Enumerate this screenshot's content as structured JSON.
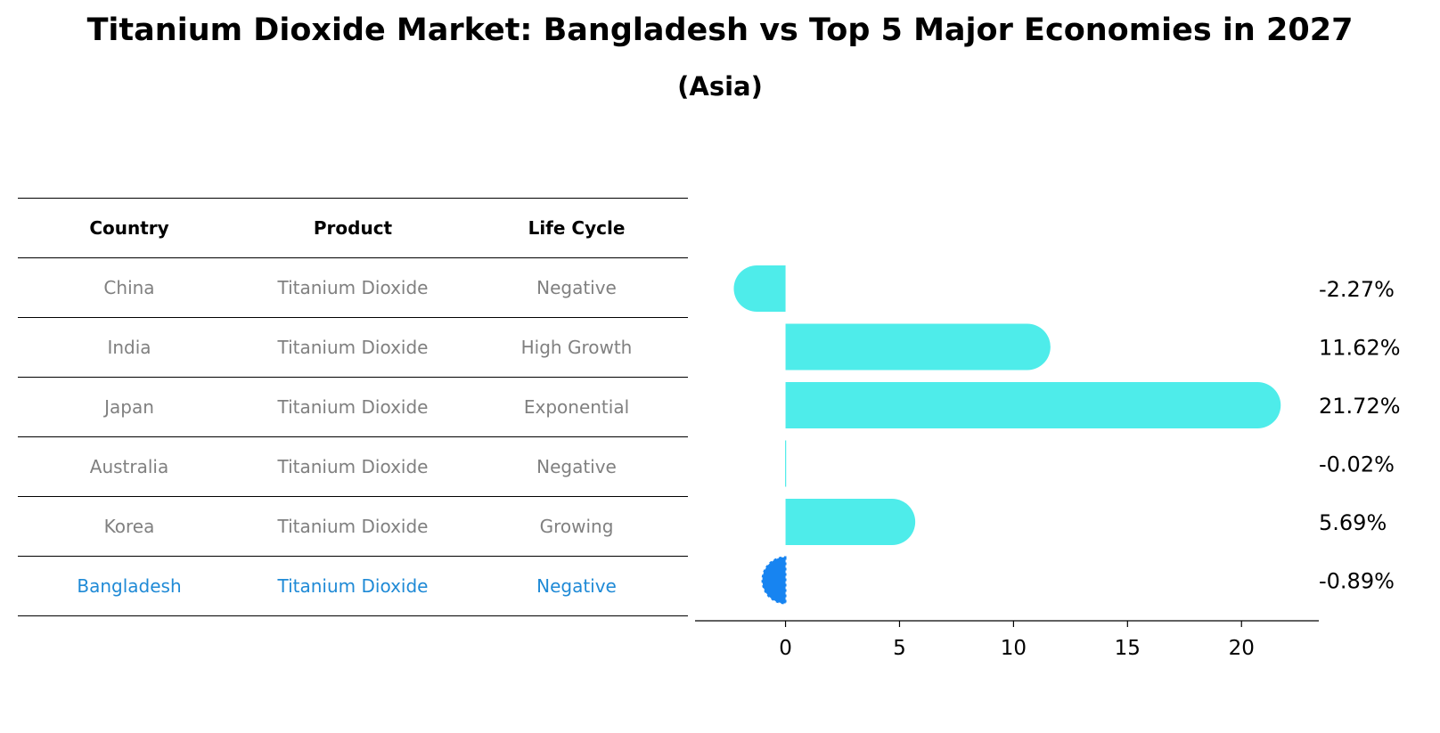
{
  "title": "Titanium Dioxide Market: Bangladesh vs Top 5 Major Economies in 2027",
  "subtitle": "(Asia)",
  "table": {
    "headers": [
      "Country",
      "Product",
      "Life Cycle"
    ],
    "rows": [
      {
        "country": "China",
        "product": "Titanium Dioxide",
        "life_cycle": "Negative"
      },
      {
        "country": "India",
        "product": "Titanium Dioxide",
        "life_cycle": "High Growth"
      },
      {
        "country": "Japan",
        "product": "Titanium Dioxide",
        "life_cycle": "Exponential"
      },
      {
        "country": "Australia",
        "product": "Titanium Dioxide",
        "life_cycle": "Negative"
      },
      {
        "country": "Korea",
        "product": "Titanium Dioxide",
        "life_cycle": "Growing"
      },
      {
        "country": "Bangladesh",
        "product": "Titanium Dioxide",
        "life_cycle": "Negative"
      }
    ]
  },
  "chart_data": {
    "type": "bar",
    "orientation": "horizontal",
    "categories": [
      "China",
      "India",
      "Japan",
      "Australia",
      "Korea",
      "Bangladesh"
    ],
    "values": [
      -2.27,
      11.62,
      21.72,
      -0.02,
      5.69,
      -0.89
    ],
    "value_labels": [
      "-2.27%",
      "11.62%",
      "21.72%",
      "-0.02%",
      "5.69%",
      "-0.89%"
    ],
    "xticks": [
      0,
      5,
      10,
      15,
      20
    ],
    "xlim": [
      -3.5,
      23.0
    ],
    "grid": false,
    "colors": {
      "default": "#4eecea",
      "highlight": "#1784f1"
    },
    "highlight_category": "Bangladesh"
  }
}
